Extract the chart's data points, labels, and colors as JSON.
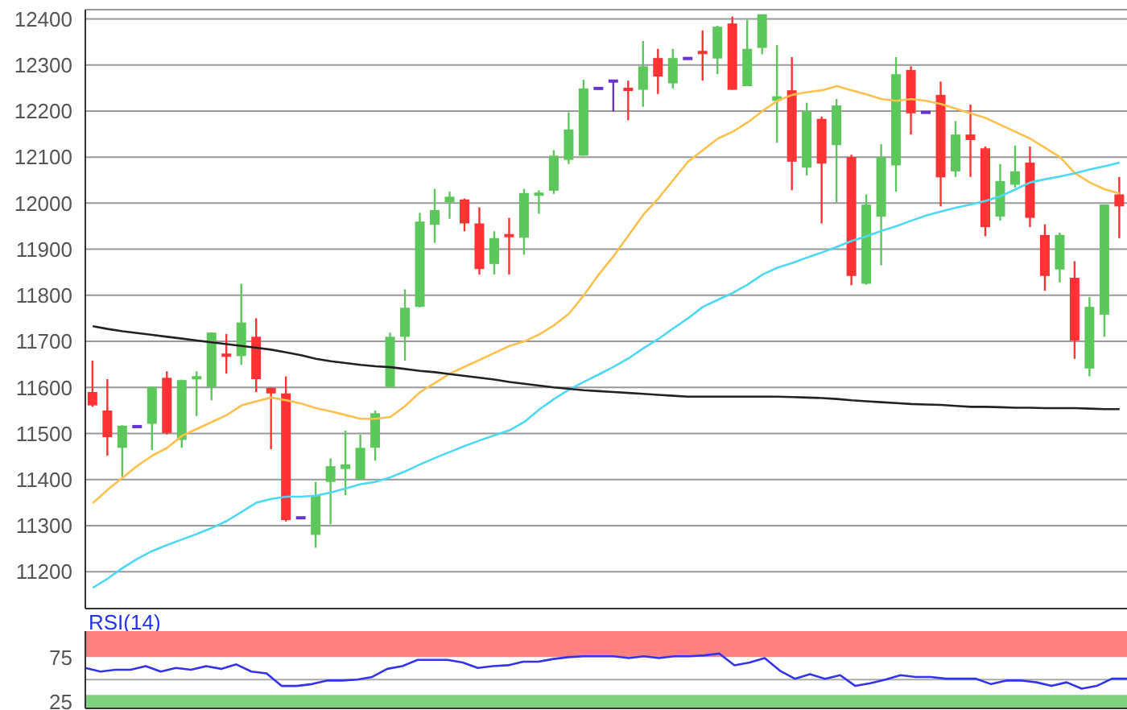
{
  "chart_data": [
    {
      "type": "candlestick",
      "categories": [
        null,
        null,
        null,
        null,
        null,
        null,
        null,
        null,
        null,
        null,
        null,
        null,
        null,
        null,
        null,
        null,
        null,
        null,
        null,
        null,
        null,
        null,
        null,
        null,
        null,
        null,
        null,
        null,
        null,
        null,
        null,
        null,
        null,
        null,
        null,
        null,
        null,
        null,
        null,
        null,
        null,
        null,
        null,
        null,
        null,
        null,
        null,
        null,
        null,
        null,
        null,
        null,
        null,
        null,
        null,
        null,
        null,
        null,
        null,
        null,
        null,
        null,
        null,
        null,
        null,
        null,
        null,
        null,
        null,
        null
      ],
      "ohlc": [
        [
          11590,
          11658,
          11558,
          11561
        ],
        [
          11550,
          11618,
          11452,
          11492
        ],
        [
          11469,
          11518,
          11406,
          11517
        ],
        [
          11515,
          11515,
          11515,
          11515
        ],
        [
          11521,
          11602,
          11464,
          11601
        ],
        [
          11621,
          11635,
          11498,
          11501
        ],
        [
          11486,
          11617,
          11469,
          11616
        ],
        [
          11620,
          11635,
          11538,
          11622
        ],
        [
          11601,
          11719,
          11572,
          11719
        ],
        [
          11672,
          11716,
          11630,
          11668
        ],
        [
          11668,
          11825,
          11649,
          11741
        ],
        [
          11710,
          11750,
          11590,
          11618
        ],
        [
          11599,
          11600,
          11466,
          11587
        ],
        [
          11587,
          11624,
          11309,
          11312
        ],
        [
          11317,
          11317,
          11317,
          11317
        ],
        [
          11280,
          11395,
          11252,
          11366
        ],
        [
          11395,
          11446,
          11303,
          11429
        ],
        [
          11423,
          11506,
          11366,
          11433
        ],
        [
          11401,
          11498,
          11400,
          11469
        ],
        [
          11469,
          11550,
          11441,
          11544
        ],
        [
          11601,
          11719,
          11600,
          11710
        ],
        [
          11710,
          11813,
          11658,
          11773
        ],
        [
          11775,
          11979,
          11774,
          11960
        ],
        [
          11953,
          12031,
          11914,
          11985
        ],
        [
          12002,
          12025,
          11966,
          12014
        ],
        [
          12008,
          12010,
          11939,
          11956
        ],
        [
          11956,
          11991,
          11845,
          11857
        ],
        [
          11868,
          11939,
          11845,
          11924
        ],
        [
          11931,
          11968,
          11845,
          11928
        ],
        [
          11925,
          12031,
          11888,
          12022
        ],
        [
          12017,
          12028,
          11977,
          12022
        ],
        [
          12027,
          12115,
          12020,
          12103
        ],
        [
          12094,
          12197,
          12085,
          12160
        ],
        [
          12103,
          12268,
          12103,
          12249
        ],
        [
          12249,
          12249,
          12249,
          12249
        ],
        [
          12265,
          12268,
          12199,
          12265
        ],
        [
          12249,
          12266,
          12180,
          12245
        ],
        [
          12246,
          12352,
          12209,
          12297
        ],
        [
          12315,
          12335,
          12237,
          12275
        ],
        [
          12260,
          12335,
          12249,
          12315
        ],
        [
          12314,
          12314,
          12314,
          12314
        ],
        [
          12329,
          12375,
          12266,
          12325
        ],
        [
          12314,
          12385,
          12280,
          12383
        ],
        [
          12390,
          12405,
          12246,
          12246
        ],
        [
          12254,
          12398,
          12254,
          12335
        ],
        [
          12337,
          12410,
          12323,
          12410
        ],
        [
          12222,
          12343,
          12131,
          12232
        ],
        [
          12245,
          12317,
          12028,
          12090
        ],
        [
          12077,
          12218,
          12060,
          12199
        ],
        [
          12183,
          12188,
          11956,
          12086
        ],
        [
          12126,
          12226,
          12002,
          12212
        ],
        [
          12100,
          12105,
          11822,
          11842
        ],
        [
          11825,
          12019,
          11823,
          11997
        ],
        [
          11971,
          12128,
          11865,
          12100
        ],
        [
          12082,
          12317,
          12025,
          12280
        ],
        [
          12289,
          12297,
          12149,
          12195
        ],
        [
          12197,
          12197,
          12197,
          12197
        ],
        [
          12235,
          12264,
          11993,
          12056
        ],
        [
          12069,
          12178,
          12057,
          12149
        ],
        [
          12149,
          12214,
          12057,
          12137
        ],
        [
          12119,
          12123,
          11928,
          11948
        ],
        [
          11971,
          12085,
          11962,
          12048
        ],
        [
          12040,
          12125,
          12034,
          12069
        ],
        [
          12088,
          12123,
          11948,
          11968
        ],
        [
          11931,
          11954,
          11810,
          11842
        ],
        [
          11856,
          11936,
          11828,
          11931
        ],
        [
          11838,
          11874,
          11662,
          11702
        ],
        [
          11641,
          11796,
          11624,
          11775
        ],
        [
          11758,
          11997,
          11710,
          11997
        ],
        [
          12019,
          12057,
          11924,
          11993
        ]
      ],
      "colors": [
        "#ff3333",
        "#ff3333",
        "#5cc85c",
        "#6633cc",
        "#5cc85c",
        "#ff3333",
        "#5cc85c",
        "#5cc85c",
        "#5cc85c",
        "#ff3333",
        "#5cc85c",
        "#ff3333",
        "#ff3333",
        "#ff3333",
        "#6633cc",
        "#5cc85c",
        "#5cc85c",
        "#5cc85c",
        "#5cc85c",
        "#5cc85c",
        "#5cc85c",
        "#5cc85c",
        "#5cc85c",
        "#5cc85c",
        "#5cc85c",
        "#ff3333",
        "#ff3333",
        "#5cc85c",
        "#ff3333",
        "#5cc85c",
        "#5cc85c",
        "#5cc85c",
        "#5cc85c",
        "#5cc85c",
        "#6633cc",
        "#6633cc",
        "#ff3333",
        "#5cc85c",
        "#ff3333",
        "#5cc85c",
        "#6633cc",
        "#ff3333",
        "#5cc85c",
        "#ff3333",
        "#5cc85c",
        "#5cc85c",
        "#5cc85c",
        "#ff3333",
        "#5cc85c",
        "#ff3333",
        "#5cc85c",
        "#ff3333",
        "#5cc85c",
        "#5cc85c",
        "#5cc85c",
        "#ff3333",
        "#6633cc",
        "#ff3333",
        "#5cc85c",
        "#ff3333",
        "#ff3333",
        "#5cc85c",
        "#5cc85c",
        "#ff3333",
        "#ff3333",
        "#5cc85c",
        "#ff3333",
        "#5cc85c",
        "#5cc85c",
        "#ff3333"
      ],
      "series": [
        {
          "type": "line",
          "color": "#ffc04d",
          "values": [
            11349,
            11378,
            11404,
            11430,
            11452,
            11469,
            11495,
            11510,
            11525,
            11540,
            11561,
            11570,
            11578,
            11572,
            11565,
            11555,
            11548,
            11540,
            11532,
            11532,
            11536,
            11560,
            11590,
            11610,
            11630,
            11645,
            11660,
            11675,
            11690,
            11700,
            11715,
            11735,
            11760,
            11800,
            11845,
            11885,
            11930,
            11975,
            12010,
            12050,
            12090,
            12115,
            12140,
            12155,
            12175,
            12200,
            12222,
            12235,
            12241,
            12245,
            12254,
            12245,
            12236,
            12226,
            12222,
            12226,
            12222,
            12215,
            12205,
            12195,
            12185,
            12170,
            12155,
            12140,
            12120,
            12100,
            12065,
            12045,
            12030,
            12021
          ]
        },
        {
          "type": "line",
          "color": "#4dd8f5",
          "values": [
            11165,
            11185,
            11208,
            11228,
            11245,
            11258,
            11270,
            11282,
            11295,
            11310,
            11330,
            11350,
            11358,
            11363,
            11363,
            11365,
            11372,
            11381,
            11390,
            11395,
            11405,
            11418,
            11433,
            11447,
            11460,
            11473,
            11485,
            11496,
            11507,
            11525,
            11552,
            11575,
            11595,
            11612,
            11628,
            11645,
            11663,
            11685,
            11705,
            11728,
            11750,
            11775,
            11790,
            11805,
            11823,
            11845,
            11860,
            11870,
            11882,
            11893,
            11905,
            11918,
            11928,
            11940,
            11950,
            11962,
            11973,
            11982,
            11990,
            11997,
            12005,
            12015,
            12030,
            12045,
            12052,
            12058,
            12065,
            12073,
            12080,
            12088
          ]
        },
        {
          "type": "line",
          "color": "#222222",
          "values": [
            11733,
            11727,
            11722,
            11718,
            11714,
            11710,
            11706,
            11702,
            11698,
            11694,
            11690,
            11686,
            11682,
            11676,
            11670,
            11662,
            11657,
            11653,
            11649,
            11646,
            11644,
            11640,
            11636,
            11633,
            11629,
            11625,
            11621,
            11617,
            11612,
            11608,
            11604,
            11600,
            11597,
            11594,
            11592,
            11590,
            11588,
            11586,
            11584,
            11582,
            11580,
            11580,
            11580,
            11580,
            11580,
            11580,
            11580,
            11579,
            11578,
            11577,
            11575,
            11572,
            11570,
            11568,
            11566,
            11564,
            11563,
            11562,
            11560,
            11558,
            11558,
            11557,
            11556,
            11556,
            11555,
            11555,
            11555,
            11554,
            11553,
            11553
          ]
        }
      ],
      "marker": "none",
      "ylim": [
        11120,
        12420
      ],
      "yticks": [
        11200,
        11300,
        11400,
        11500,
        11600,
        11700,
        11800,
        11900,
        12000,
        12100,
        12200,
        12300,
        12400
      ],
      "grid": "y"
    },
    {
      "type": "line",
      "title": "RSI(14)",
      "categories": [
        null,
        null,
        null,
        null,
        null,
        null,
        null,
        null,
        null,
        null,
        null,
        null,
        null,
        null,
        null,
        null,
        null,
        null,
        null,
        null,
        null,
        null,
        null,
        null,
        null,
        null,
        null,
        null,
        null,
        null,
        null,
        null,
        null,
        null,
        null,
        null,
        null,
        null,
        null,
        null,
        null,
        null,
        null,
        null,
        null,
        null,
        null,
        null,
        null,
        null,
        null,
        null,
        null,
        null,
        null,
        null,
        null,
        null,
        null,
        null,
        null,
        null,
        null,
        null,
        null,
        null,
        null,
        null,
        null,
        null
      ],
      "series": [
        {
          "color": "#3333ee",
          "values": [
            63,
            59,
            61,
            61,
            65,
            59,
            63,
            61,
            65,
            62,
            67,
            59,
            57,
            43,
            43,
            45,
            49,
            49,
            50,
            53,
            62,
            65,
            72,
            72,
            72,
            69,
            63,
            65,
            66,
            70,
            70,
            73,
            75,
            76,
            76,
            76,
            74,
            76,
            74,
            76,
            76,
            77,
            79,
            66,
            69,
            74,
            60,
            51,
            56,
            51,
            55,
            43,
            46,
            50,
            55,
            53,
            53,
            51,
            51,
            51,
            45,
            49,
            49,
            47,
            43,
            47,
            40,
            43,
            51,
            51
          ]
        }
      ],
      "marker": "none",
      "ylim": [
        18,
        104
      ],
      "yticks": [
        25,
        75
      ],
      "bands": [
        {
          "axis": "y",
          "from": 75,
          "to": 104,
          "color": "#ff8080"
        },
        {
          "axis": "y",
          "from": 18,
          "to": 33,
          "color": "#80d080"
        }
      ],
      "ref_lines": [
        {
          "axis": "y",
          "value": 50,
          "color": "#aaaaaa"
        }
      ]
    }
  ]
}
